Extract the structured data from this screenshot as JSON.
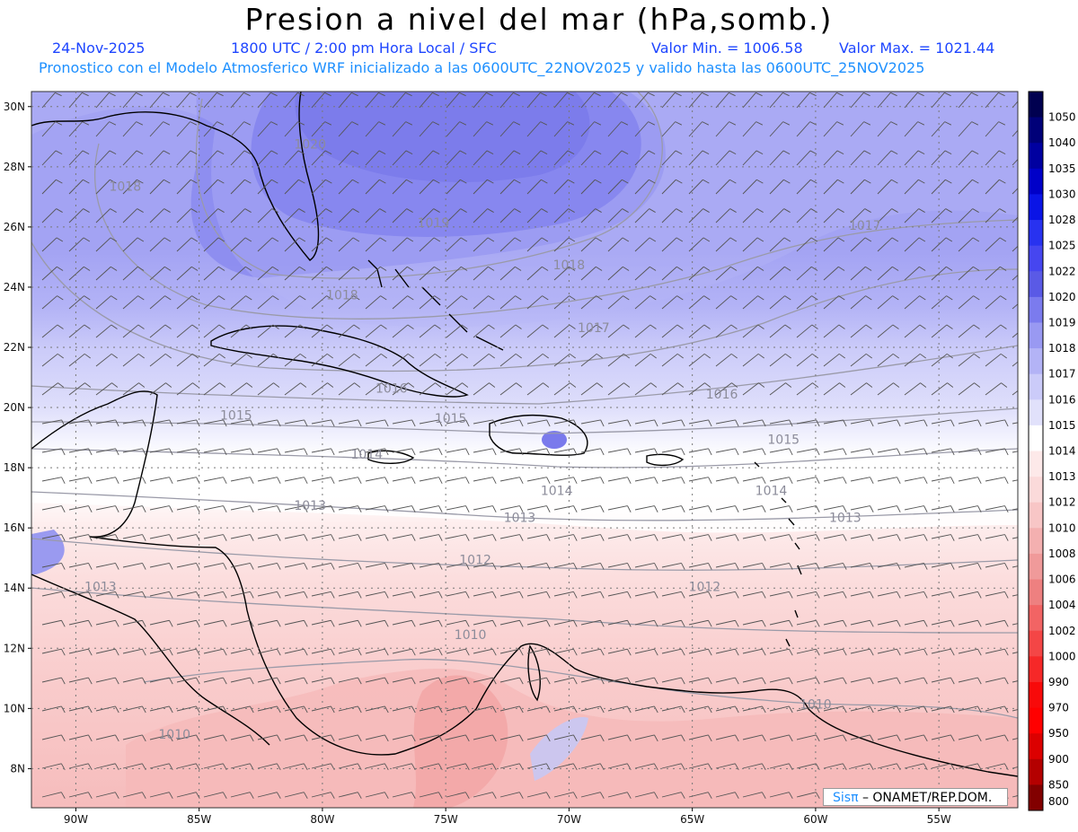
{
  "header": {
    "title": "Presion a nivel del mar (hPa,somb.)",
    "date": "24-Nov-2025",
    "time": "1800 UTC / 2:00 pm Hora Local / SFC",
    "vmin": "Valor Min. = 1006.58",
    "vmax": "Valor Max. = 1021.44",
    "info": "Pronostico con el Modelo Atmosferico WRF inicializado a las 0600UTC_22NOV2025 y valido hasta las  0600UTC_25NOV2025"
  },
  "map": {
    "lat_labels": [
      "30N",
      "28N",
      "26N",
      "24N",
      "22N",
      "20N",
      "18N",
      "16N",
      "14N",
      "12N",
      "10N",
      "8N"
    ],
    "lon_labels": [
      "90W",
      "85W",
      "80W",
      "75W",
      "70W",
      "65W",
      "60W",
      "55W"
    ],
    "lat_range": [
      6.7,
      30.5
    ],
    "lon_range": [
      -91.8,
      -51.8
    ],
    "projection": "latitude-longitude",
    "grid": true,
    "shading_colors": {
      "1020": "#5a5ae6",
      "1019": "#7b7bee",
      "1018": "#9999f2",
      "1017": "#b3b3f6",
      "1016": "#cbcbf9",
      "1015": "#e1e1fb",
      "1014": "#ffffff",
      "1013": "#fde9e9",
      "1012": "#fbdada",
      "1010": "#f8c6c6",
      "1008": "#f4b0b0"
    },
    "contour_labels": [
      {
        "text": "1020",
        "lon": -80.5,
        "lat": 28.6
      },
      {
        "text": "1019",
        "lon": -75.5,
        "lat": 26.0
      },
      {
        "text": "1018",
        "lon": -88.0,
        "lat": 27.2
      },
      {
        "text": "1018",
        "lon": -70.0,
        "lat": 24.6
      },
      {
        "text": "1018",
        "lon": -79.2,
        "lat": 23.6
      },
      {
        "text": "1017",
        "lon": -58.0,
        "lat": 25.9
      },
      {
        "text": "1017",
        "lon": -69.0,
        "lat": 22.5
      },
      {
        "text": "1016",
        "lon": -77.2,
        "lat": 20.5
      },
      {
        "text": "1016",
        "lon": -63.8,
        "lat": 20.3
      },
      {
        "text": "1015",
        "lon": -83.5,
        "lat": 19.6
      },
      {
        "text": "1015",
        "lon": -74.8,
        "lat": 19.5
      },
      {
        "text": "1015",
        "lon": -61.3,
        "lat": 18.8
      },
      {
        "text": "1014",
        "lon": -78.2,
        "lat": 18.3
      },
      {
        "text": "1014",
        "lon": -70.5,
        "lat": 17.1
      },
      {
        "text": "1014",
        "lon": -61.8,
        "lat": 17.1
      },
      {
        "text": "1013",
        "lon": -80.5,
        "lat": 16.6
      },
      {
        "text": "1013",
        "lon": -72.0,
        "lat": 16.2
      },
      {
        "text": "1013",
        "lon": -58.8,
        "lat": 16.2
      },
      {
        "text": "1013",
        "lon": -89.0,
        "lat": 13.9
      },
      {
        "text": "1012",
        "lon": -73.8,
        "lat": 14.8
      },
      {
        "text": "1012",
        "lon": -64.5,
        "lat": 13.9
      },
      {
        "text": "1010",
        "lon": -74.0,
        "lat": 12.3
      },
      {
        "text": "1010",
        "lon": -60.0,
        "lat": 10.0
      },
      {
        "text": "1010",
        "lon": -86.0,
        "lat": 9.0
      }
    ]
  },
  "legend": {
    "levels": [
      {
        "value": "1050",
        "color": "#000050"
      },
      {
        "value": "1040",
        "color": "#000078"
      },
      {
        "value": "1035",
        "color": "#0000a0"
      },
      {
        "value": "1030",
        "color": "#0000c8"
      },
      {
        "value": "1028",
        "color": "#0a14e6"
      },
      {
        "value": "1025",
        "color": "#2832f0"
      },
      {
        "value": "1022",
        "color": "#4646f0"
      },
      {
        "value": "1020",
        "color": "#5a5ae6"
      },
      {
        "value": "1019",
        "color": "#7b7bee"
      },
      {
        "value": "1018",
        "color": "#9999f2"
      },
      {
        "value": "1017",
        "color": "#b3b3f6"
      },
      {
        "value": "1016",
        "color": "#cbcbf9"
      },
      {
        "value": "1015",
        "color": "#e1e1fb"
      },
      {
        "value": "1014",
        "color": "#ffffff"
      },
      {
        "value": "1013",
        "color": "#fde9e9"
      },
      {
        "value": "1012",
        "color": "#fbdada"
      },
      {
        "value": "1010",
        "color": "#f8c6c6"
      },
      {
        "value": "1008",
        "color": "#f4b0b0"
      },
      {
        "value": "1006",
        "color": "#f09a9a"
      },
      {
        "value": "1004",
        "color": "#ee8080"
      },
      {
        "value": "1002",
        "color": "#f26464"
      },
      {
        "value": "1000",
        "color": "#f44646"
      },
      {
        "value": "990",
        "color": "#f62828"
      },
      {
        "value": "970",
        "color": "#f80a0a"
      },
      {
        "value": "950",
        "color": "#ff0000"
      },
      {
        "value": "900",
        "color": "#dc0000"
      },
      {
        "value": "850",
        "color": "#b40000"
      },
      {
        "value": "800",
        "color": "#820000"
      }
    ]
  },
  "credit": {
    "a": "Sisπ",
    "b": " – ONAMET/REP.DOM."
  }
}
